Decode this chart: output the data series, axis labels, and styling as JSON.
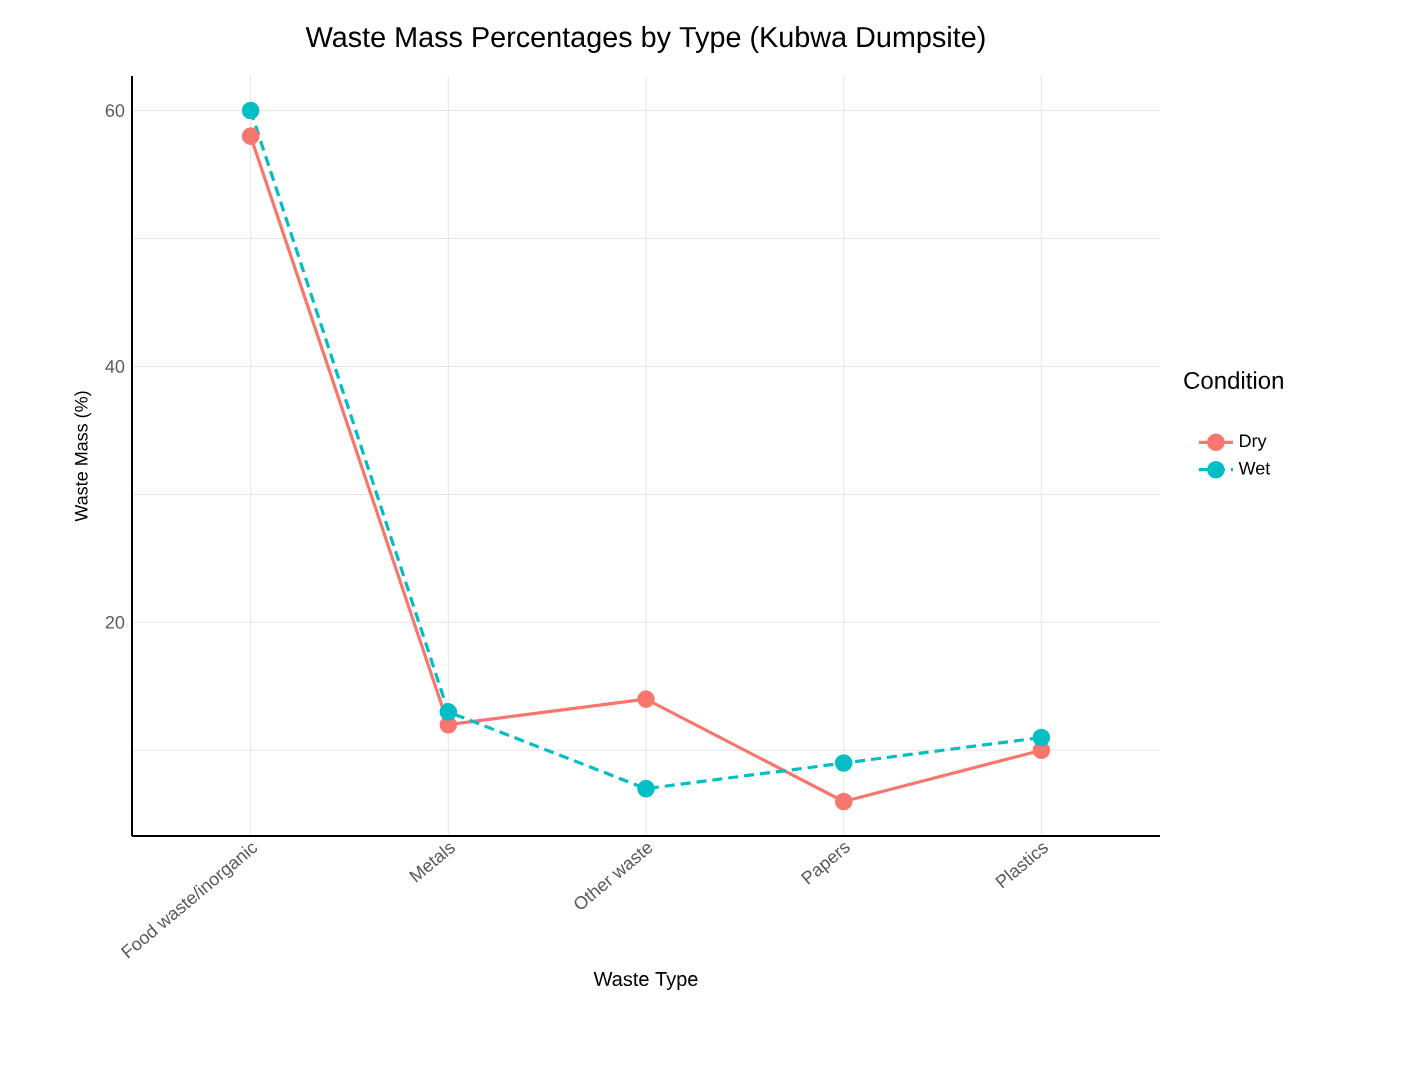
{
  "chart_data": {
    "type": "line",
    "title": "Waste Mass Percentages by Type (Kubwa Dumpsite)",
    "xlabel": "Waste Type",
    "ylabel": "Waste Mass (%)",
    "legend_title": "Condition",
    "categories": [
      "Food waste/inorganic",
      "Metals",
      "Other waste",
      "Papers",
      "Plastics"
    ],
    "series": [
      {
        "name": "Dry",
        "color": "#f8766d",
        "values": [
          58,
          12,
          14,
          6,
          10
        ],
        "line_style": "solid"
      },
      {
        "name": "Wet",
        "color": "#00bfc4",
        "values": [
          60,
          13,
          7,
          9,
          11
        ],
        "line_style": "dashed"
      }
    ],
    "ylim": [
      3.3,
      62.7
    ],
    "yticks": [
      {
        "value": 10,
        "label": null
      },
      20,
      {
        "value": 30,
        "label": null
      },
      40,
      {
        "value": 50,
        "label": null
      },
      60
    ],
    "grid": true,
    "legend": "right",
    "marker": "circle"
  }
}
